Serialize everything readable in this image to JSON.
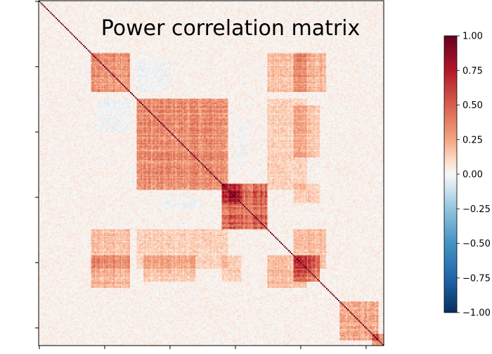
{
  "chart_data": {
    "type": "heatmap",
    "title": "Power correlation matrix",
    "xlabel": "",
    "ylabel": "",
    "x_tick_labels": [],
    "y_tick_labels": [],
    "matrix_size": 264,
    "diagonal_value": 1.0,
    "value_range": [
      -1.0,
      1.0
    ],
    "colormap": "RdBu_r",
    "colormap_stops": [
      {
        "value": -1.0,
        "color": "#053061"
      },
      {
        "value": -0.75,
        "color": "#2166ac"
      },
      {
        "value": -0.5,
        "color": "#4393c3"
      },
      {
        "value": -0.25,
        "color": "#92c5de"
      },
      {
        "value": -0.1,
        "color": "#d1e5f0"
      },
      {
        "value": 0.0,
        "color": "#f7f7f7"
      },
      {
        "value": 0.1,
        "color": "#fddbc7"
      },
      {
        "value": 0.25,
        "color": "#f4a582"
      },
      {
        "value": 0.5,
        "color": "#d6604d"
      },
      {
        "value": 0.75,
        "color": "#b2182b"
      },
      {
        "value": 1.0,
        "color": "#67001f"
      }
    ],
    "colorbar_ticks": [
      {
        "value": 1.0,
        "label": "1.00"
      },
      {
        "value": 0.75,
        "label": "0.75"
      },
      {
        "value": 0.5,
        "label": "0.50"
      },
      {
        "value": 0.25,
        "label": "0.25"
      },
      {
        "value": 0.0,
        "label": "0.00"
      },
      {
        "value": -0.25,
        "label": "−0.25"
      },
      {
        "value": -0.5,
        "label": "−0.50"
      },
      {
        "value": -0.75,
        "label": "−0.75"
      },
      {
        "value": -1.0,
        "label": "−1.00"
      }
    ],
    "blocks": [
      {
        "range": [
          40,
          70
        ],
        "mean_corr": 0.3
      },
      {
        "range": [
          75,
          145
        ],
        "mean_corr": 0.3
      },
      {
        "range": [
          140,
          155
        ],
        "mean_corr": 0.25
      },
      {
        "range": [
          140,
          175
        ],
        "mean_corr": 0.45
      },
      {
        "range": [
          195,
          215
        ],
        "mean_corr": 0.35
      },
      {
        "range": [
          230,
          260
        ],
        "mean_corr": 0.2
      },
      {
        "range": [
          255,
          264
        ],
        "mean_corr": 0.3
      }
    ],
    "cross_blocks": [
      {
        "rows": [
          40,
          70
        ],
        "cols": [
          195,
          220
        ],
        "mean_corr": 0.35
      },
      {
        "rows": [
          175,
          205
        ],
        "cols": [
          40,
          70
        ],
        "mean_corr": 0.3
      },
      {
        "rows": [
          175,
          205
        ],
        "cols": [
          195,
          220
        ],
        "mean_corr": 0.3
      },
      {
        "rows": [
          175,
          205
        ],
        "cols": [
          75,
          145
        ],
        "mean_corr": 0.2
      },
      {
        "rows": [
          80,
          120
        ],
        "cols": [
          195,
          215
        ],
        "mean_corr": 0.25
      },
      {
        "rows": [
          140,
          155
        ],
        "cols": [
          195,
          215
        ],
        "mean_corr": 0.2
      },
      {
        "rows": [
          75,
          100
        ],
        "cols": [
          45,
          70
        ],
        "mean_corr": -0.08
      },
      {
        "rows": [
          95,
          125
        ],
        "cols": [
          150,
          160
        ],
        "mean_corr": -0.06
      }
    ]
  }
}
